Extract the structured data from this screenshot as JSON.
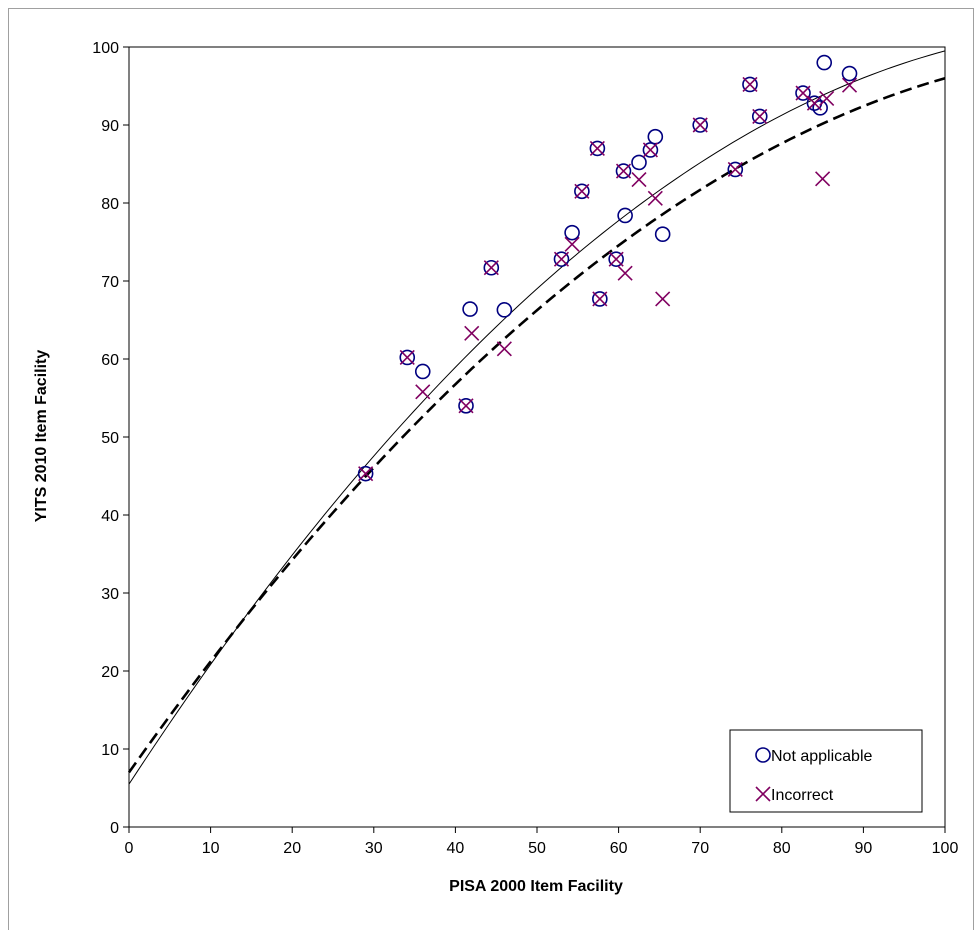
{
  "chart_data": {
    "type": "scatter",
    "title": "",
    "xlabel": "PISA 2000 Item Facility",
    "ylabel": "YITS 2010 Item Facility",
    "xlim": [
      0,
      100
    ],
    "ylim": [
      0,
      100
    ],
    "x_ticks": [
      0,
      10,
      20,
      30,
      40,
      50,
      60,
      70,
      80,
      90,
      100
    ],
    "y_ticks": [
      0,
      10,
      20,
      30,
      40,
      50,
      60,
      70,
      80,
      90,
      100
    ],
    "grid": false,
    "legend_position": "bottom-right",
    "series": [
      {
        "name": "Not applicable",
        "marker": "circle",
        "color": "#000080",
        "points": [
          [
            29,
            45.3
          ],
          [
            34.1,
            60.2
          ],
          [
            36,
            58.4
          ],
          [
            41.3,
            54
          ],
          [
            41.8,
            66.4
          ],
          [
            44.4,
            71.7
          ],
          [
            46,
            66.3
          ],
          [
            53,
            72.8
          ],
          [
            54.3,
            76.2
          ],
          [
            55.5,
            81.5
          ],
          [
            57.4,
            87
          ],
          [
            57.7,
            67.7
          ],
          [
            59.7,
            72.8
          ],
          [
            60.6,
            84.1
          ],
          [
            60.8,
            78.4
          ],
          [
            62.5,
            85.2
          ],
          [
            63.9,
            86.8
          ],
          [
            64.5,
            88.5
          ],
          [
            65.4,
            76
          ],
          [
            70,
            90
          ],
          [
            74.3,
            84.3
          ],
          [
            76.1,
            95.2
          ],
          [
            77.3,
            91.1
          ],
          [
            82.6,
            94.1
          ],
          [
            84,
            92.8
          ],
          [
            84.7,
            92.2
          ],
          [
            85.2,
            98
          ],
          [
            88.3,
            96.6
          ]
        ]
      },
      {
        "name": "Incorrect",
        "marker": "x",
        "color": "#800060",
        "points": [
          [
            29,
            45.3
          ],
          [
            34.1,
            60.2
          ],
          [
            36,
            55.8
          ],
          [
            41.3,
            54
          ],
          [
            42,
            63.3
          ],
          [
            44.4,
            71.7
          ],
          [
            46,
            61.3
          ],
          [
            53,
            72.8
          ],
          [
            54.3,
            74.7
          ],
          [
            55.5,
            81.5
          ],
          [
            57.4,
            87
          ],
          [
            57.7,
            67.7
          ],
          [
            59.7,
            72.8
          ],
          [
            60.6,
            84.1
          ],
          [
            60.8,
            71
          ],
          [
            62.5,
            83
          ],
          [
            63.9,
            86.8
          ],
          [
            64.5,
            80.6
          ],
          [
            65.4,
            67.7
          ],
          [
            70,
            90
          ],
          [
            74.3,
            84.3
          ],
          [
            76.1,
            95.2
          ],
          [
            77.3,
            91.1
          ],
          [
            82.6,
            94.1
          ],
          [
            84,
            92.8
          ],
          [
            85,
            83.1
          ],
          [
            85.5,
            93.4
          ],
          [
            88.3,
            95.1
          ]
        ]
      }
    ],
    "trend_lines": [
      {
        "style": "solid",
        "color": "#000000",
        "coefficients": [
          5.5,
          1.6,
          -0.0066
        ]
      },
      {
        "style": "dashed",
        "color": "#000000",
        "coefficients": [
          7,
          1.48,
          -0.0059
        ]
      }
    ]
  }
}
